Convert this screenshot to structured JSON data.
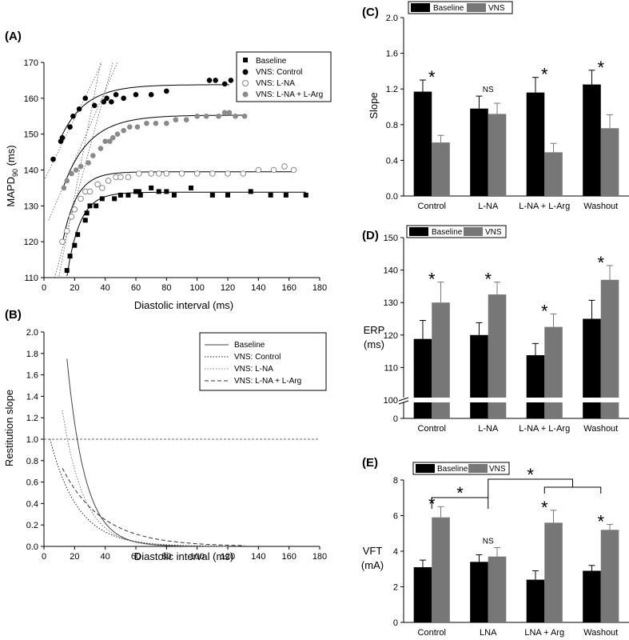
{
  "colors": {
    "baseline_bar": "#000000",
    "vns_bar": "#777777",
    "gray_marker": "#8a8a8a",
    "axis": "#000000"
  },
  "chart_data": [
    {
      "id": "A",
      "type": "scatter",
      "panel_label": "(A)",
      "xlabel": "Diastolic interval (ms)",
      "ylabel_main": "MAPD",
      "ylabel_sub": "90",
      "ylabel_unit": " (ms)",
      "xlim": [
        0,
        180
      ],
      "ylim": [
        110,
        170
      ],
      "xticks": [
        "0",
        "20",
        "40",
        "60",
        "80",
        "100",
        "120",
        "140",
        "160",
        "180"
      ],
      "yticks": [
        "110",
        "120",
        "130",
        "140",
        "150",
        "160",
        "170"
      ],
      "legend": [
        "Baseline",
        "VNS: Control",
        "VNS: L-NA",
        "VNS: L-NA + L-Arg"
      ],
      "series": [
        {
          "name": "Baseline",
          "marker": "square-black",
          "curve": {
            "amax": 133.8,
            "b": 110.5,
            "tau": 8.5,
            "x0": 15,
            "x1": 171
          },
          "tangent": [
            [
              6,
              102
            ],
            [
              37,
              170
            ]
          ],
          "points": [
            [
              15,
              112
            ],
            [
              17,
              116
            ],
            [
              20,
              119
            ],
            [
              22,
              122
            ],
            [
              27,
              126
            ],
            [
              28,
              128
            ],
            [
              30,
              130
            ],
            [
              34,
              130
            ],
            [
              38,
              132
            ],
            [
              46,
              132
            ],
            [
              50,
              133
            ],
            [
              55,
              133
            ],
            [
              60,
              134
            ],
            [
              62,
              134
            ],
            [
              63,
              133
            ],
            [
              70,
              135
            ],
            [
              75,
              134
            ],
            [
              80,
              134
            ],
            [
              85,
              133
            ],
            [
              96,
              135
            ],
            [
              110,
              133
            ],
            [
              120,
              133
            ],
            [
              135,
              134
            ],
            [
              148,
              133
            ],
            [
              158,
              133
            ],
            [
              171,
              133
            ]
          ]
        },
        {
          "name": "VNS: Control",
          "marker": "circle-black",
          "curve": {
            "amax": 163.8,
            "b": 148,
            "tau": 16,
            "x0": 10,
            "x1": 121
          },
          "tangent": [
            [
              0,
              137
            ],
            [
              38,
              170
            ]
          ],
          "points": [
            [
              6,
              143
            ],
            [
              11,
              148
            ],
            [
              12,
              149
            ],
            [
              17,
              152
            ],
            [
              19,
              155
            ],
            [
              23,
              157
            ],
            [
              27,
              160
            ],
            [
              33,
              158
            ],
            [
              39,
              159
            ],
            [
              41,
              160
            ],
            [
              44,
              159
            ],
            [
              47,
              161
            ],
            [
              52,
              160
            ],
            [
              60,
              161
            ],
            [
              70,
              161
            ],
            [
              80,
              162
            ],
            [
              108,
              165
            ],
            [
              112,
              165
            ],
            [
              118,
              164
            ],
            [
              122,
              165
            ]
          ]
        },
        {
          "name": "VNS: L-NA",
          "marker": "circle-open",
          "curve": {
            "amax": 139.5,
            "b": 119.5,
            "tau": 9,
            "x0": 12,
            "x1": 163
          },
          "tangent": [
            [
              7,
              110
            ],
            [
              45,
              170
            ]
          ],
          "points": [
            [
              12,
              120
            ],
            [
              15,
              123
            ],
            [
              18,
              127
            ],
            [
              20,
              129
            ],
            [
              24,
              132
            ],
            [
              27,
              134
            ],
            [
              30,
              134
            ],
            [
              35,
              136
            ],
            [
              38,
              135
            ],
            [
              42,
              137
            ],
            [
              47,
              138
            ],
            [
              50,
              138
            ],
            [
              55,
              138
            ],
            [
              62,
              139
            ],
            [
              70,
              139
            ],
            [
              75,
              139
            ],
            [
              80,
              139
            ],
            [
              90,
              139
            ],
            [
              100,
              139
            ],
            [
              110,
              139
            ],
            [
              120,
              139
            ],
            [
              130,
              139
            ],
            [
              140,
              140
            ],
            [
              150,
              140
            ],
            [
              157,
              141
            ],
            [
              163,
              140
            ]
          ]
        },
        {
          "name": "VNS: L-NA + L-Arg",
          "marker": "circle-gray",
          "curve": {
            "amax": 155.3,
            "b": 134.5,
            "tau": 17,
            "x0": 12,
            "x1": 131
          },
          "tangent": [
            [
              3,
              126
            ],
            [
              48,
              170
            ]
          ],
          "points": [
            [
              13,
              135
            ],
            [
              15,
              137
            ],
            [
              18,
              139
            ],
            [
              21,
              140
            ],
            [
              24,
              141
            ],
            [
              29,
              142
            ],
            [
              32,
              144
            ],
            [
              37,
              146
            ],
            [
              40,
              148
            ],
            [
              43,
              148
            ],
            [
              45,
              149
            ],
            [
              48,
              150
            ],
            [
              52,
              151
            ],
            [
              56,
              152
            ],
            [
              61,
              152
            ],
            [
              67,
              153
            ],
            [
              73,
              153
            ],
            [
              80,
              153
            ],
            [
              86,
              154
            ],
            [
              93,
              154
            ],
            [
              100,
              155
            ],
            [
              106,
              155
            ],
            [
              114,
              155
            ],
            [
              118,
              156
            ],
            [
              121,
              156
            ],
            [
              125,
              155
            ],
            [
              131,
              155
            ]
          ]
        }
      ]
    },
    {
      "id": "B",
      "type": "line",
      "panel_label": "(B)",
      "xlabel": "Diastolic interval (ms)",
      "ylabel": "Restitution slope",
      "xlim": [
        0,
        180
      ],
      "ylim": [
        0,
        2.0
      ],
      "xticks": [
        "0",
        "20",
        "40",
        "60",
        "80",
        "100",
        "120",
        "140",
        "160",
        "180"
      ],
      "yticks": [
        "0.0",
        "0.2",
        "0.4",
        "0.6",
        "0.8",
        "1.0",
        "1.2",
        "1.4",
        "1.6",
        "1.8",
        "2.0"
      ],
      "reference_line": 1.0,
      "legend": [
        "Baseline",
        "VNS: Control",
        "VNS: L-NA",
        "VNS: L-NA + L-Arg"
      ],
      "series": [
        {
          "name": "Baseline",
          "dash": "solid",
          "color": "#444444",
          "s0": 1.75,
          "x0": 15,
          "x1": 120
        },
        {
          "name": "VNS: Control",
          "dash": "dot",
          "color": "#222222",
          "s0": 1.0,
          "x0": 4,
          "x1": 120
        },
        {
          "name": "VNS: L-NA",
          "dash": "dot",
          "color": "#777777",
          "s0": 1.27,
          "x0": 12,
          "x1": 120
        },
        {
          "name": "VNS: L-NA + L-Arg",
          "dash": "dash",
          "color": "#333333",
          "s0": 0.73,
          "x0": 12,
          "x1": 131
        }
      ]
    },
    {
      "id": "C",
      "type": "bar",
      "panel_label": "(C)",
      "ylabel": "Slope",
      "categories": [
        "Control",
        "L-NA",
        "L-NA + L-Arg",
        "Washout"
      ],
      "legend": [
        "Baseline",
        "VNS"
      ],
      "ylim": [
        0,
        2.0
      ],
      "yticks": [
        "0.0",
        "0.4",
        "0.8",
        "1.2",
        "1.6",
        "2.0"
      ],
      "series": [
        {
          "name": "Baseline",
          "values": [
            1.17,
            0.98,
            1.16,
            1.25
          ],
          "errors": [
            0.13,
            0.14,
            0.17,
            0.16
          ]
        },
        {
          "name": "VNS",
          "values": [
            0.6,
            0.92,
            0.49,
            0.76
          ],
          "errors": [
            0.08,
            0.12,
            0.1,
            0.15
          ]
        }
      ],
      "annotations": [
        "*",
        "NS",
        "*",
        "*"
      ]
    },
    {
      "id": "D",
      "type": "bar",
      "panel_label": "(D)",
      "ylabel": "ERP",
      "yunit": "(ms)",
      "categories": [
        "Control",
        "L-NA",
        "L-NA + L-Arg",
        "Washout"
      ],
      "legend": [
        "Baseline",
        "VNS"
      ],
      "ylim": [
        100,
        150
      ],
      "yticks": [
        "100",
        "110",
        "120",
        "130",
        "140",
        "150"
      ],
      "y_break_label": "0",
      "series": [
        {
          "name": "Baseline",
          "values": [
            118.8,
            120.0,
            113.8,
            125.0
          ],
          "errors": [
            5.7,
            3.8,
            3.6,
            5.7
          ]
        },
        {
          "name": "VNS",
          "values": [
            130.0,
            132.5,
            122.5,
            137.0
          ],
          "errors": [
            6.3,
            3.8,
            4.0,
            4.4
          ]
        }
      ],
      "annotations": [
        "*",
        "*",
        "*",
        "*"
      ]
    },
    {
      "id": "E",
      "type": "bar",
      "panel_label": "(E)",
      "ylabel": "VFT",
      "yunit": "(mA)",
      "categories": [
        "Control",
        "LNA",
        "LNA + Arg",
        "Washout"
      ],
      "legend": [
        "Baseline",
        "VNS"
      ],
      "ylim": [
        0,
        8
      ],
      "yticks": [
        "0",
        "2",
        "4",
        "6",
        "8"
      ],
      "series": [
        {
          "name": "Baseline",
          "values": [
            3.1,
            3.4,
            2.4,
            2.9
          ],
          "errors": [
            0.4,
            0.4,
            0.5,
            0.3
          ]
        },
        {
          "name": "VNS",
          "values": [
            5.9,
            3.7,
            5.6,
            5.2
          ],
          "errors": [
            0.6,
            0.5,
            0.7,
            0.3
          ]
        }
      ],
      "annotations": [
        "*",
        "NS",
        "*",
        "*"
      ],
      "comparisons": [
        {
          "label": "*",
          "between": [
            "Control",
            "LNA"
          ]
        },
        {
          "label": "*",
          "between": [
            "LNA",
            "LNA + Arg / Washout"
          ]
        }
      ]
    }
  ]
}
